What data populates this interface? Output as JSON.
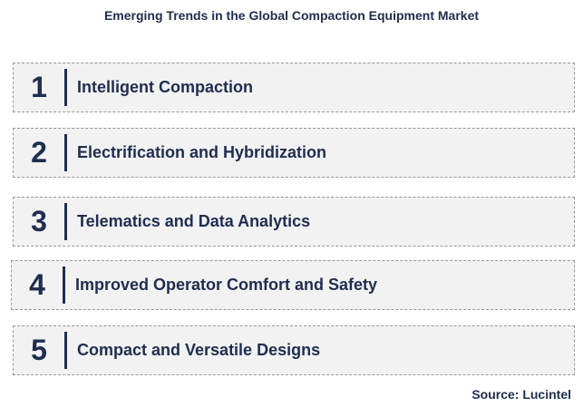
{
  "title": "Emerging Trends in the Global Compaction Equipment Market",
  "items": [
    {
      "number": "1",
      "label": "Intelligent Compaction"
    },
    {
      "number": "2",
      "label": "Electrification and Hybridization"
    },
    {
      "number": "3",
      "label": "Telematics and Data Analytics"
    },
    {
      "number": "4",
      "label": "Improved Operator Comfort and Safety"
    },
    {
      "number": "5",
      "label": "Compact and Versatile Designs"
    }
  ],
  "source": "Source: Lucintel"
}
